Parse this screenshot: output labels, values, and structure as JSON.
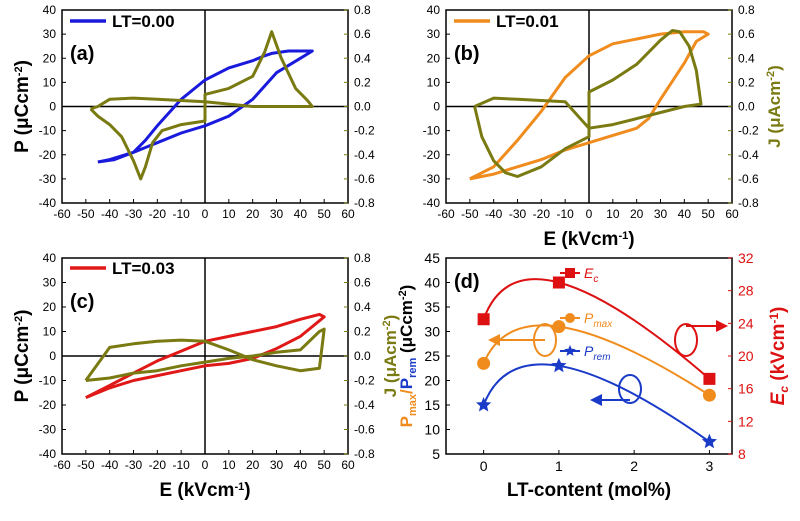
{
  "colors": {
    "LT0": "#1a1add",
    "LT1": "#f08c1e",
    "LT3": "#e01818",
    "current": "#7a7a12",
    "Ec": "#dd1111",
    "Pmax": "#f08c1e",
    "Prem": "#1a3ac8"
  },
  "chart_data": [
    {
      "type": "line",
      "panel": "(a)",
      "legend": "LT=0.00",
      "xlim": [
        -60,
        60
      ],
      "ylim_left": [
        -40,
        40
      ],
      "ylim_right": [
        -0.8,
        0.8
      ],
      "xticks": [
        "-60",
        "-50",
        "-40",
        "-30",
        "-20",
        "-10",
        "0",
        "10",
        "20",
        "30",
        "40",
        "50",
        "60"
      ],
      "yticks_left": [
        "-40",
        "-30",
        "-20",
        "-10",
        "0",
        "10",
        "20",
        "30",
        "40"
      ],
      "yticks_right": [
        "-0.8",
        "-0.6",
        "-0.4",
        "-0.2",
        "0.0",
        "0.2",
        "0.4",
        "0.6",
        "0.8"
      ],
      "ylabel_left": "P (μCcm⁻²)",
      "ylabel_right": "",
      "xlabel": "",
      "series": [
        {
          "name": "P",
          "axis": "left",
          "color_key": "LT0",
          "x": [
            -45,
            -38,
            -30,
            -25,
            -20,
            -10,
            0,
            10,
            20,
            25,
            28,
            35,
            45,
            40,
            30,
            20,
            10,
            0,
            -10,
            -20,
            -25,
            -30,
            -40,
            -45
          ],
          "y": [
            -23,
            -22,
            -19,
            -14,
            -8,
            3,
            11,
            16,
            19,
            21,
            22,
            23,
            23,
            20,
            14,
            3,
            -4,
            -8,
            -11,
            -15,
            -17,
            -19,
            -22,
            -23
          ]
        },
        {
          "name": "J",
          "axis": "right",
          "color_key": "current",
          "x": [
            -48,
            -45,
            -40,
            -35,
            -30,
            -27,
            -25,
            -22,
            -18,
            -10,
            0,
            0,
            10,
            20,
            25,
            28,
            32,
            38,
            43,
            45,
            35,
            20,
            10,
            0,
            -10,
            -20,
            -30,
            -40,
            -45,
            -48
          ],
          "y": [
            -0.02,
            -0.08,
            -0.15,
            -0.25,
            -0.45,
            -0.6,
            -0.5,
            -0.3,
            -0.2,
            -0.15,
            -0.12,
            0.1,
            0.15,
            0.25,
            0.45,
            0.62,
            0.4,
            0.15,
            0.05,
            0.0,
            0.0,
            0.0,
            0.02,
            0.04,
            0.05,
            0.06,
            0.07,
            0.06,
            0.0,
            -0.02
          ]
        }
      ]
    },
    {
      "type": "line",
      "panel": "(b)",
      "legend": "LT=0.01",
      "xlim": [
        -60,
        60
      ],
      "ylim_left": [
        -40,
        40
      ],
      "ylim_right": [
        -0.8,
        0.8
      ],
      "xticks": [
        "-60",
        "-50",
        "-40",
        "-30",
        "-20",
        "-10",
        "0",
        "10",
        "20",
        "30",
        "40",
        "50",
        "60"
      ],
      "yticks_left": [
        "-40",
        "-30",
        "-20",
        "-10",
        "0",
        "10",
        "20",
        "30",
        "40"
      ],
      "yticks_right": [
        "-0.8",
        "-0.6",
        "-0.4",
        "-0.2",
        "0.0",
        "0.2",
        "0.4",
        "0.6",
        "0.8"
      ],
      "ylabel_left": "",
      "ylabel_right": "J (μAcm⁻²)",
      "xlabel": "E (kVcm⁻¹)",
      "series": [
        {
          "name": "P",
          "axis": "left",
          "color_key": "LT1",
          "x": [
            -50,
            -40,
            -30,
            -20,
            -10,
            0,
            10,
            20,
            30,
            40,
            48,
            50,
            45,
            40,
            30,
            25,
            20,
            10,
            0,
            -10,
            -20,
            -30,
            -40,
            -50
          ],
          "y": [
            -30,
            -25,
            -14,
            -2,
            12,
            21,
            26,
            28,
            30,
            31,
            31,
            30,
            27,
            18,
            3,
            -5,
            -9,
            -12,
            -15,
            -18,
            -22,
            -25,
            -28,
            -30
          ]
        },
        {
          "name": "J",
          "axis": "right",
          "color_key": "current",
          "x": [
            -48,
            -45,
            -40,
            -35,
            -30,
            -20,
            -10,
            0,
            0,
            10,
            20,
            30,
            35,
            38,
            42,
            45,
            47,
            40,
            30,
            20,
            10,
            0,
            -10,
            -20,
            -30,
            -40,
            -48
          ],
          "y": [
            0.0,
            -0.25,
            -0.45,
            -0.55,
            -0.58,
            -0.5,
            -0.35,
            -0.25,
            0.12,
            0.22,
            0.35,
            0.55,
            0.63,
            0.62,
            0.5,
            0.3,
            0.02,
            0.0,
            -0.05,
            -0.1,
            -0.15,
            -0.18,
            0.04,
            0.05,
            0.06,
            0.07,
            0.0
          ]
        }
      ]
    },
    {
      "type": "line",
      "panel": "(c)",
      "legend": "LT=0.03",
      "xlim": [
        -60,
        60
      ],
      "ylim_left": [
        -40,
        40
      ],
      "ylim_right": [
        -0.8,
        0.8
      ],
      "xticks": [
        "-60",
        "-50",
        "-40",
        "-30",
        "-20",
        "-10",
        "0",
        "10",
        "20",
        "30",
        "40",
        "50",
        "60"
      ],
      "yticks_left": [
        "-40",
        "-30",
        "-20",
        "-10",
        "0",
        "10",
        "20",
        "30",
        "40"
      ],
      "yticks_right": [
        "-0.8",
        "-0.6",
        "-0.4",
        "-0.2",
        "0.0",
        "0.2",
        "0.4",
        "0.6",
        "0.8"
      ],
      "ylabel_left": "P (μCcm⁻²)",
      "ylabel_right": "J (μAcm⁻²)",
      "xlabel": "E (kVcm⁻¹)",
      "series": [
        {
          "name": "P",
          "axis": "left",
          "color_key": "LT3",
          "x": [
            -50,
            -40,
            -30,
            -20,
            -10,
            0,
            10,
            20,
            30,
            40,
            48,
            50,
            45,
            40,
            30,
            20,
            10,
            0,
            -10,
            -20,
            -30,
            -40,
            -50
          ],
          "y": [
            -17,
            -12,
            -7,
            -2,
            2,
            6,
            8,
            10,
            12,
            15,
            17,
            16,
            12,
            8,
            3,
            -1,
            -3,
            -4,
            -6,
            -8,
            -10,
            -13,
            -17
          ]
        },
        {
          "name": "J",
          "axis": "right",
          "color_key": "current",
          "x": [
            -50,
            -40,
            -30,
            -20,
            -10,
            0,
            10,
            20,
            30,
            40,
            48,
            50,
            48,
            40,
            30,
            20,
            10,
            0,
            -10,
            -20,
            -30,
            -40,
            -50
          ],
          "y": [
            -0.2,
            -0.18,
            -0.14,
            -0.12,
            -0.08,
            -0.05,
            -0.02,
            0.0,
            0.03,
            0.05,
            0.2,
            0.22,
            -0.1,
            -0.12,
            -0.08,
            -0.03,
            0.05,
            0.12,
            0.13,
            0.12,
            0.1,
            0.07,
            -0.2
          ]
        }
      ]
    },
    {
      "type": "scatter",
      "panel": "(d)",
      "xlabel": "LT-content (mol%)",
      "ylabel_left": "P_max/P_rem (μCcm⁻²)",
      "ylabel_right": "Ec (kVcm⁻¹)",
      "xlim": [
        -0.5,
        3.3
      ],
      "ylim_left": [
        5,
        45
      ],
      "ylim_right": [
        8,
        32
      ],
      "xticks": [
        "0",
        "1",
        "2",
        "3"
      ],
      "yticks_left": [
        "5",
        "10",
        "15",
        "20",
        "25",
        "30",
        "35",
        "40",
        "45"
      ],
      "yticks_right": [
        "8",
        "12",
        "16",
        "20",
        "24",
        "28",
        "32"
      ],
      "series": [
        {
          "name": "Ec",
          "axis": "right",
          "color_key": "Ec",
          "marker": "square",
          "x": [
            0,
            1,
            3
          ],
          "y": [
            24.5,
            29,
            17.2
          ]
        },
        {
          "name": "Pmax",
          "axis": "left",
          "color_key": "Pmax",
          "marker": "circle",
          "x": [
            0,
            1,
            3
          ],
          "y": [
            23.5,
            31,
            17
          ]
        },
        {
          "name": "Prem",
          "axis": "left",
          "color_key": "Prem",
          "marker": "star",
          "x": [
            0,
            1,
            3
          ],
          "y": [
            15,
            23,
            7.5
          ]
        }
      ],
      "legend": [
        {
          "label": "Ec",
          "color_key": "Ec"
        },
        {
          "label": "Pmax",
          "color_key": "Pmax"
        },
        {
          "label": "Prem",
          "color_key": "Prem"
        }
      ]
    }
  ]
}
